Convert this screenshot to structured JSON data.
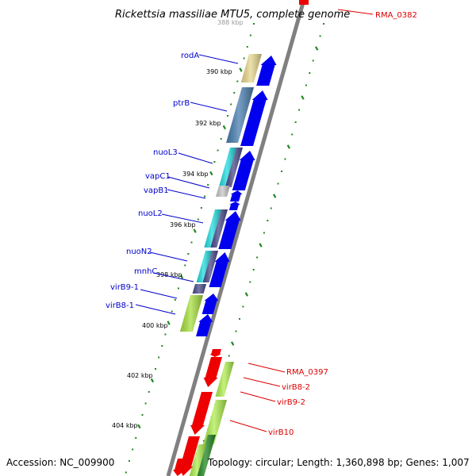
{
  "title": "Rickettsia massiliae MTU5, complete genome",
  "accession_text": "Accession: NC_009900",
  "topology_text": "Topology: circular; Length: 1,360,898 bp; Genes: 1,007",
  "colors": {
    "forward_label": "#0000cc",
    "reverse_label": "#dd0000",
    "backbone": "#808080",
    "tick": "#228822",
    "cds_forward": "#0000ee",
    "cds_reverse": "#ee0000"
  },
  "kbp_labels": [
    "388 kbp",
    "390 kbp",
    "392 kbp",
    "394 kbp",
    "396 kbp",
    "398 kbp",
    "400 kbp",
    "402 kbp",
    "404 kbp"
  ],
  "forward_gene_labels": [
    "rodA",
    "ptrB",
    "nuoL3",
    "vapC1",
    "vapB1",
    "nuoL2",
    "nuoN2",
    "mnhC",
    "virB9-1",
    "virB8-1"
  ],
  "reverse_gene_labels": [
    "RMA_0382",
    "RMA_0397",
    "virB8-2",
    "virB9-2",
    "virB10"
  ]
}
